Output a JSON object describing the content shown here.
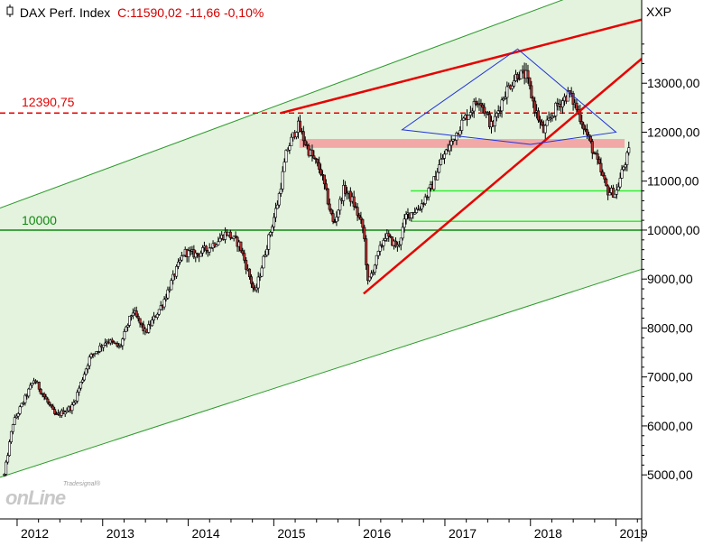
{
  "header": {
    "title": "DAX Perf. Index",
    "quote": "C:11590,02 -11,66 -0,10%",
    "axis_name": "XXP"
  },
  "watermark": {
    "brand_small": "Tradesignal®",
    "brand_main": "onLine"
  },
  "colors": {
    "channel_fill": "#e3f3dd",
    "channel_line": "#2e9a2e",
    "resistance_red": "#e60000",
    "zone_fill": "#f2a0a0",
    "support_green": "#33ee33",
    "level_green": "#118811",
    "triangle_blue": "#2233dd",
    "candle_up": "#ffffff",
    "candle_down": "#b03030",
    "candle_wick": "#000000"
  },
  "chart_data": {
    "type": "candlestick",
    "instrument": "DAX Perf. Index",
    "last": {
      "close": 11590.02,
      "change": -11.66,
      "change_pct": -0.1
    },
    "x_ticks": [
      "2012",
      "2013",
      "2014",
      "2015",
      "2016",
      "2017",
      "2018",
      "2019"
    ],
    "y_ticks": [
      5000,
      6000,
      7000,
      8000,
      9000,
      10000,
      11000,
      12000,
      13000
    ],
    "y_tick_labels": [
      "5000,00",
      "6000,00",
      "7000,00",
      "8000,00",
      "9000,00",
      "10000,00",
      "11000,00",
      "12000,00",
      "13000,00"
    ],
    "xlim": [
      2011.8,
      2019.3
    ],
    "ylim": [
      4100,
      14700
    ],
    "levels": [
      {
        "name": "high-2015",
        "value": 12390.75,
        "label": "12390,75",
        "style": "dashed-red"
      },
      {
        "name": "round-10000",
        "value": 10000,
        "label": "10000",
        "style": "solid-green"
      }
    ],
    "support_lines": [
      {
        "x": [
          2016.6,
          2019.3
        ],
        "y": 10800
      },
      {
        "x": [
          2016.6,
          2019.3
        ],
        "y": 10180
      }
    ],
    "resistance_zone": {
      "x": [
        2015.3,
        2019.1
      ],
      "y": [
        11680,
        11860
      ]
    },
    "trendlines": [
      {
        "name": "upper-resistance",
        "color": "red",
        "points": [
          [
            2015.08,
            12390
          ],
          [
            2019.3,
            14300
          ]
        ]
      },
      {
        "name": "uptrend-2016",
        "color": "red",
        "points": [
          [
            2016.05,
            8700
          ],
          [
            2019.3,
            13500
          ]
        ]
      }
    ],
    "channel": {
      "upper": [
        [
          2011.8,
          10450
        ],
        [
          2019.3,
          15300
        ]
      ],
      "lower": [
        [
          2011.8,
          4950
        ],
        [
          2019.3,
          9200
        ]
      ]
    },
    "diamond": {
      "points": [
        [
          2016.5,
          12050
        ],
        [
          2017.85,
          13700
        ],
        [
          2019.0,
          12000
        ],
        [
          2018.0,
          11750
        ]
      ]
    },
    "anchors": [
      [
        2011.85,
        5000
      ],
      [
        2011.95,
        6050
      ],
      [
        2012.2,
        6950
      ],
      [
        2012.45,
        6200
      ],
      [
        2012.65,
        6400
      ],
      [
        2012.85,
        7400
      ],
      [
        2013.05,
        7750
      ],
      [
        2013.2,
        7600
      ],
      [
        2013.35,
        8350
      ],
      [
        2013.5,
        7900
      ],
      [
        2013.7,
        8500
      ],
      [
        2013.95,
        9550
      ],
      [
        2014.1,
        9500
      ],
      [
        2014.25,
        9650
      ],
      [
        2014.45,
        9950
      ],
      [
        2014.6,
        9700
      ],
      [
        2014.78,
        8700
      ],
      [
        2014.95,
        9900
      ],
      [
        2015.05,
        10600
      ],
      [
        2015.15,
        11600
      ],
      [
        2015.28,
        12150
      ],
      [
        2015.4,
        11650
      ],
      [
        2015.55,
        11200
      ],
      [
        2015.7,
        10100
      ],
      [
        2015.82,
        10850
      ],
      [
        2015.92,
        10600
      ],
      [
        2016.05,
        10000
      ],
      [
        2016.1,
        8900
      ],
      [
        2016.3,
        9900
      ],
      [
        2016.45,
        9650
      ],
      [
        2016.55,
        10300
      ],
      [
        2016.7,
        10450
      ],
      [
        2016.85,
        10900
      ],
      [
        2016.95,
        11400
      ],
      [
        2017.05,
        11700
      ],
      [
        2017.2,
        12200
      ],
      [
        2017.4,
        12700
      ],
      [
        2017.55,
        12100
      ],
      [
        2017.7,
        12800
      ],
      [
        2017.85,
        13200
      ],
      [
        2017.95,
        13150
      ],
      [
        2018.05,
        12500
      ],
      [
        2018.15,
        12000
      ],
      [
        2018.3,
        12500
      ],
      [
        2018.45,
        12800
      ],
      [
        2018.55,
        12450
      ],
      [
        2018.65,
        12000
      ],
      [
        2018.8,
        11300
      ],
      [
        2018.9,
        10800
      ],
      [
        2019.0,
        10750
      ],
      [
        2019.08,
        11250
      ],
      [
        2019.15,
        11590
      ]
    ]
  }
}
